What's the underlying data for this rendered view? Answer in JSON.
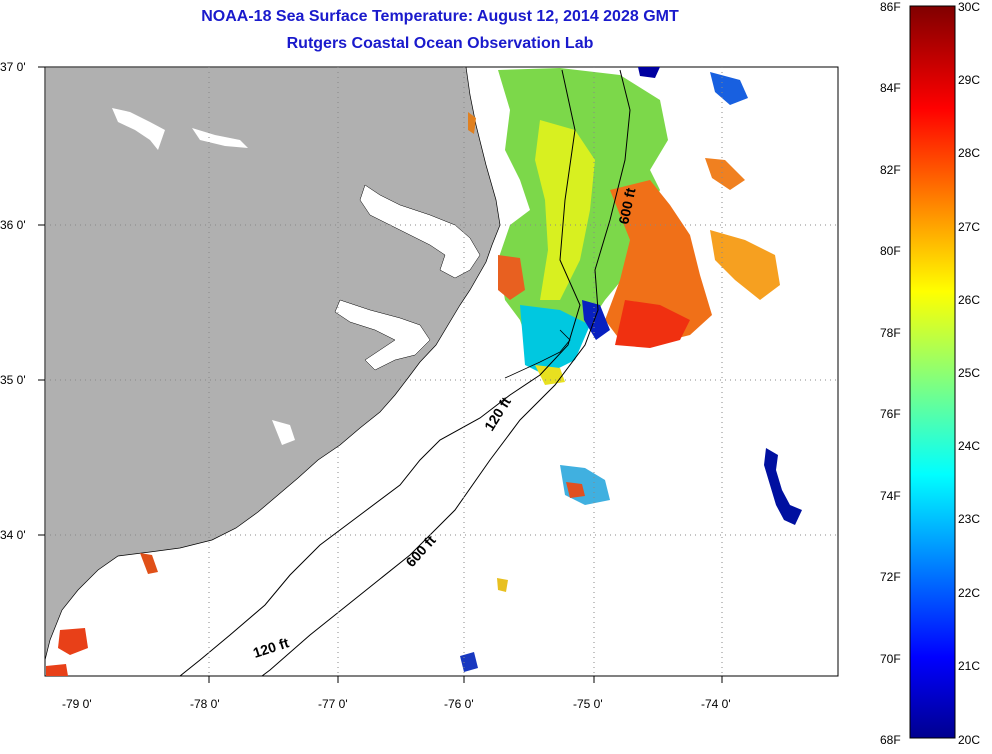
{
  "title": "NOAA-18 Sea Surface Temperature:  August 12, 2014 2028 GMT",
  "subtitle": "Rutgers Coastal Ocean Observation Lab",
  "lat_ticks": [
    "37 0'",
    "36 0'",
    "35 0'",
    "34 0'"
  ],
  "lon_ticks": [
    "-79 0'",
    "-78 0'",
    "-77 0'",
    "-76 0'",
    "-75 0'",
    "-74 0'"
  ],
  "contour_labels": [
    "600 ft",
    "120 ft",
    "600 ft",
    "120 ft"
  ],
  "colorbar": {
    "fahrenheit": [
      "86F",
      "84F",
      "82F",
      "80F",
      "78F",
      "76F",
      "74F",
      "72F",
      "70F",
      "68F"
    ],
    "celsius": [
      "30C",
      "29C",
      "28C",
      "27C",
      "26C",
      "25C",
      "24C",
      "23C",
      "22C",
      "21C",
      "20C"
    ]
  },
  "colors": {
    "land": "#b0b0b0",
    "title": "#1a1acc",
    "grid": "#888888"
  }
}
